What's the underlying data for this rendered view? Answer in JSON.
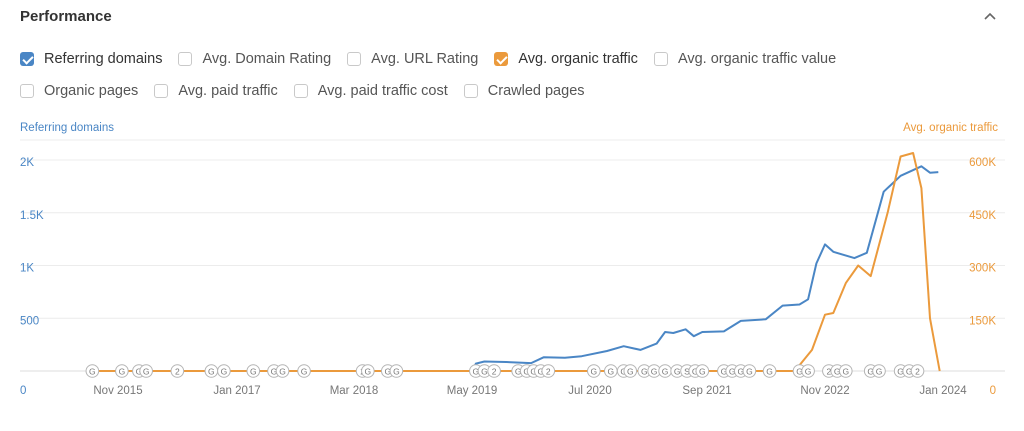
{
  "header": {
    "title": "Performance"
  },
  "options": {
    "row1": [
      {
        "label": "Referring domains",
        "checked": true,
        "color": "#4a86c5"
      },
      {
        "label": "Avg. Domain Rating",
        "checked": false
      },
      {
        "label": "Avg. URL Rating",
        "checked": false
      },
      {
        "label": "Avg. organic traffic",
        "checked": true,
        "color": "#eb9a3c"
      },
      {
        "label": "Avg. organic traffic value",
        "checked": false
      }
    ],
    "row2": [
      {
        "label": "Organic pages",
        "checked": false
      },
      {
        "label": "Avg. paid traffic",
        "checked": false
      },
      {
        "label": "Avg. paid traffic cost",
        "checked": false
      },
      {
        "label": "Crawled pages",
        "checked": false
      }
    ]
  },
  "chart_data": {
    "type": "line",
    "y_left_label": "Referring domains",
    "y_right_label": "Avg. organic traffic",
    "y_left_ticks": [
      "0",
      "500",
      "1K",
      "1.5K",
      "2K"
    ],
    "y_left_range": [
      0,
      2000
    ],
    "y_right_ticks": [
      "0",
      "150K",
      "300K",
      "450K",
      "600K"
    ],
    "y_right_range": [
      0,
      600000
    ],
    "x_ticks": [
      {
        "label": "Nov 2015",
        "date": "2015-11-01"
      },
      {
        "label": "Jan 2017",
        "date": "2017-01-01"
      },
      {
        "label": "Mar 2018",
        "date": "2018-03-01"
      },
      {
        "label": "May 2019",
        "date": "2019-05-01"
      },
      {
        "label": "Jul 2020",
        "date": "2020-07-01"
      },
      {
        "label": "Sep 2021",
        "date": "2021-09-01"
      },
      {
        "label": "Nov 2022",
        "date": "2022-11-01"
      },
      {
        "label": "Jan 2024",
        "date": "2024-01-01"
      }
    ],
    "grid": true,
    "colors": {
      "left": "#4a86c5",
      "right": "#eb9a3c"
    },
    "series": [
      {
        "name": "Referring domains",
        "axis": "left",
        "points": [
          [
            "2019-05-01",
            0
          ],
          [
            "2019-05-15",
            70
          ],
          [
            "2019-06-15",
            90
          ],
          [
            "2019-09-01",
            85
          ],
          [
            "2019-12-01",
            75
          ],
          [
            "2020-01-15",
            130
          ],
          [
            "2020-04-01",
            125
          ],
          [
            "2020-06-01",
            140
          ],
          [
            "2020-09-01",
            190
          ],
          [
            "2020-11-01",
            235
          ],
          [
            "2021-01-01",
            200
          ],
          [
            "2021-03-01",
            260
          ],
          [
            "2021-04-01",
            370
          ],
          [
            "2021-05-01",
            360
          ],
          [
            "2021-06-15",
            395
          ],
          [
            "2021-07-15",
            330
          ],
          [
            "2021-08-15",
            370
          ],
          [
            "2021-11-01",
            375
          ],
          [
            "2022-01-01",
            475
          ],
          [
            "2022-04-01",
            490
          ],
          [
            "2022-06-01",
            620
          ],
          [
            "2022-08-01",
            630
          ],
          [
            "2022-09-01",
            680
          ],
          [
            "2022-10-01",
            1020
          ],
          [
            "2022-11-01",
            1200
          ],
          [
            "2022-12-01",
            1130
          ],
          [
            "2023-02-15",
            1070
          ],
          [
            "2023-04-01",
            1120
          ],
          [
            "2023-06-01",
            1700
          ],
          [
            "2023-08-01",
            1850
          ],
          [
            "2023-10-15",
            1940
          ],
          [
            "2023-11-15",
            1880
          ],
          [
            "2023-12-15",
            1885
          ]
        ]
      },
      {
        "name": "Avg. organic traffic",
        "axis": "right",
        "points": [
          [
            "2015-08-01",
            0
          ],
          [
            "2022-07-15",
            0
          ],
          [
            "2022-09-15",
            60000
          ],
          [
            "2022-11-01",
            160000
          ],
          [
            "2022-12-01",
            165000
          ],
          [
            "2023-01-15",
            250000
          ],
          [
            "2023-03-01",
            300000
          ],
          [
            "2023-04-15",
            270000
          ],
          [
            "2023-06-15",
            450000
          ],
          [
            "2023-08-01",
            610000
          ],
          [
            "2023-09-15",
            620000
          ],
          [
            "2023-10-15",
            520000
          ],
          [
            "2023-11-15",
            150000
          ],
          [
            "2023-12-20",
            0
          ]
        ]
      }
    ],
    "annotations": [
      {
        "label": "G",
        "date": "2015-08-01"
      },
      {
        "label": "G",
        "date": "2015-11-15"
      },
      {
        "label": "G",
        "date": "2016-01-15"
      },
      {
        "label": "G",
        "date": "2016-02-10"
      },
      {
        "label": "2",
        "date": "2016-06-01"
      },
      {
        "label": "G",
        "date": "2016-10-01"
      },
      {
        "label": "G",
        "date": "2016-11-15"
      },
      {
        "label": "G",
        "date": "2017-03-01"
      },
      {
        "label": "G",
        "date": "2017-05-15"
      },
      {
        "label": "G",
        "date": "2017-06-15"
      },
      {
        "label": "G",
        "date": "2017-09-01"
      },
      {
        "label": "2",
        "date": "2018-04-01"
      },
      {
        "label": "G",
        "date": "2018-04-20"
      },
      {
        "label": "G",
        "date": "2018-07-01"
      },
      {
        "label": "G",
        "date": "2018-08-01"
      },
      {
        "label": "G",
        "date": "2019-05-15"
      },
      {
        "label": "G",
        "date": "2019-06-15"
      },
      {
        "label": "2",
        "date": "2019-07-20"
      },
      {
        "label": "G",
        "date": "2019-10-15"
      },
      {
        "label": "G",
        "date": "2019-11-15"
      },
      {
        "label": "G",
        "date": "2019-12-10"
      },
      {
        "label": "G",
        "date": "2020-01-05"
      },
      {
        "label": "2",
        "date": "2020-02-01"
      },
      {
        "label": "G",
        "date": "2020-07-15"
      },
      {
        "label": "G",
        "date": "2020-09-15"
      },
      {
        "label": "G",
        "date": "2020-11-01"
      },
      {
        "label": "G",
        "date": "2020-11-25"
      },
      {
        "label": "G",
        "date": "2021-01-15"
      },
      {
        "label": "G",
        "date": "2021-02-20"
      },
      {
        "label": "G",
        "date": "2021-04-01"
      },
      {
        "label": "G",
        "date": "2021-05-15"
      },
      {
        "label": "S",
        "date": "2021-06-20"
      },
      {
        "label": "G",
        "date": "2021-07-20"
      },
      {
        "label": "G",
        "date": "2021-08-15"
      },
      {
        "label": "G",
        "date": "2021-11-01"
      },
      {
        "label": "G",
        "date": "2021-12-01"
      },
      {
        "label": "G",
        "date": "2022-01-01"
      },
      {
        "label": "G",
        "date": "2022-02-01"
      },
      {
        "label": "G",
        "date": "2022-04-15"
      },
      {
        "label": "G",
        "date": "2022-08-01"
      },
      {
        "label": "G",
        "date": "2022-09-01"
      },
      {
        "label": "2",
        "date": "2022-11-15"
      },
      {
        "label": "G",
        "date": "2022-12-15"
      },
      {
        "label": "G",
        "date": "2023-01-15"
      },
      {
        "label": "G",
        "date": "2023-04-15"
      },
      {
        "label": "G",
        "date": "2023-05-15"
      },
      {
        "label": "G",
        "date": "2023-08-01"
      },
      {
        "label": "G",
        "date": "2023-09-01"
      },
      {
        "label": "2",
        "date": "2023-10-01"
      }
    ]
  }
}
